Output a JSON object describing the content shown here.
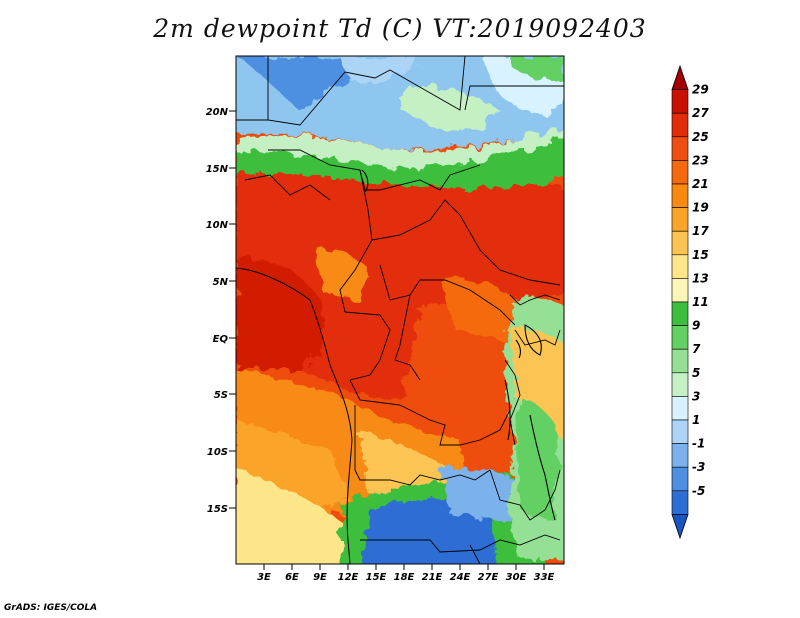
{
  "title": "2m dewpoint Td (C) VT:2019092403",
  "credit": "GrADS: IGES/COLA",
  "lat_labels": [
    "20N",
    "15N",
    "10N",
    "5N",
    "EQ",
    "5S",
    "10S",
    "15S"
  ],
  "lon_labels": [
    "3E",
    "6E",
    "9E",
    "12E",
    "15E",
    "18E",
    "21E",
    "24E",
    "27E",
    "30E",
    "33E"
  ],
  "colorbar": {
    "levels": [
      "29",
      "27",
      "25",
      "23",
      "21",
      "19",
      "17",
      "15",
      "13",
      "11",
      "9",
      "7",
      "5",
      "3",
      "1",
      "-1",
      "-3",
      "-5"
    ],
    "colors": [
      "#a50000",
      "#c80f00",
      "#e22d0a",
      "#ee4e10",
      "#f56a10",
      "#f88a12",
      "#faa52a",
      "#fbc452",
      "#fde58a",
      "#fff5b5",
      "#3cbf3c",
      "#63d063",
      "#96e096",
      "#c4f0c4",
      "#d9f2ff",
      "#acd4f6",
      "#7bb2ec",
      "#4e8fe1",
      "#2d6ed4",
      "#1a53c2"
    ]
  },
  "regions": {
    "sahara": "#8ec6f0",
    "sahel": "#3cbf3c",
    "equatorial": "#ee4e10",
    "southern_savanna": "#faa52a",
    "kalahari": "#fde58a",
    "south_dry": "#2d6ed4",
    "east_highlands": "#96e096"
  }
}
